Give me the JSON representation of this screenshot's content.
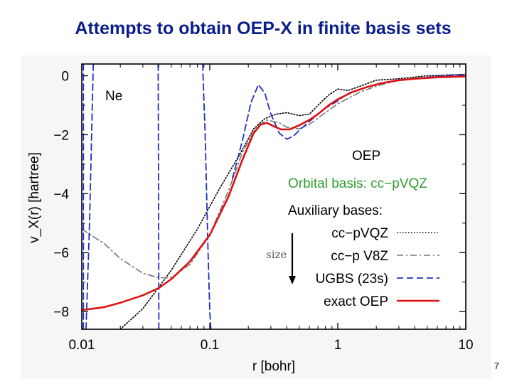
{
  "slide": {
    "title": "Attempts to obtain OEP-X in finite basis sets",
    "page_number": "7"
  },
  "chart_data": {
    "type": "line",
    "xlabel": "r  [bohr]",
    "ylabel": "v_X(r)  [hartree]",
    "xscale": "log",
    "xlim": [
      0.01,
      10
    ],
    "ylim": [
      -8.6,
      0.4
    ],
    "xticks": [
      0.01,
      0.1,
      1,
      10
    ],
    "xtick_labels": [
      "0.01",
      "0.1",
      "1",
      "10"
    ],
    "yticks": [
      0,
      -2,
      -4,
      -6,
      -8
    ],
    "ytick_labels": [
      "0",
      "−2",
      "−4",
      "−6",
      "−8"
    ],
    "annotations": {
      "atom": "Ne",
      "method": "OEP",
      "orbital_basis": "Orbital basis: cc−pVQZ",
      "aux_header": "Auxiliary bases:",
      "size": "size"
    },
    "colors": {
      "orbital_basis": "#2e9e2e",
      "size_label": "#555555"
    },
    "legend_placement": "bottom-right",
    "series": [
      {
        "name": "cc−pVQZ",
        "color": "#000000",
        "style": "dotted",
        "x": [
          0.02,
          0.03,
          0.05,
          0.08,
          0.12,
          0.17,
          0.22,
          0.27,
          0.33,
          0.4,
          0.5,
          0.6,
          0.7,
          0.85,
          1.0,
          1.2,
          1.5,
          2.0,
          3.0,
          5.0,
          10.0
        ],
        "y": [
          -8.6,
          -7.9,
          -6.6,
          -5.2,
          -3.8,
          -2.7,
          -1.8,
          -1.45,
          -1.3,
          -1.25,
          -1.35,
          -1.3,
          -1.0,
          -0.65,
          -0.45,
          -0.5,
          -0.35,
          -0.15,
          -0.1,
          0.0,
          0.05
        ]
      },
      {
        "name": "cc−p V8Z",
        "color": "#777777",
        "style": "dash-dot",
        "x": [
          0.01,
          0.015,
          0.02,
          0.03,
          0.04,
          0.05,
          0.07,
          0.1,
          0.14,
          0.18,
          0.23,
          0.28,
          0.35,
          0.4,
          0.5,
          0.6,
          0.8,
          1.0,
          1.5,
          2.0,
          3.0,
          5.0,
          10.0
        ],
        "y": [
          -5.2,
          -5.7,
          -6.2,
          -6.7,
          -6.85,
          -6.85,
          -6.4,
          -5.4,
          -3.9,
          -2.6,
          -1.75,
          -1.5,
          -1.6,
          -1.75,
          -1.8,
          -1.65,
          -1.25,
          -0.95,
          -0.55,
          -0.35,
          -0.15,
          -0.05,
          0.05
        ]
      },
      {
        "name": "UGBS (23s)",
        "color": "#1f2fbf",
        "style": "dashed",
        "segments": [
          {
            "x": [
              0.0103,
              0.0103
            ],
            "y": [
              -8.6,
              0.4
            ]
          },
          {
            "x": [
              0.0108,
              0.0115,
              0.0123
            ],
            "y": [
              -8.6,
              -5.0,
              0.4
            ]
          },
          {
            "x": [
              0.0395,
              0.0398,
              0.04
            ],
            "y": [
              0.4,
              -4.0,
              -8.6
            ]
          },
          {
            "x": [
              0.088,
              0.092,
              0.097,
              0.1,
              0.102
            ],
            "y": [
              0.4,
              -2.0,
              -6.0,
              -8.0,
              -8.6
            ]
          },
          {
            "x": [
              0.15,
              0.18,
              0.21,
              0.24,
              0.27,
              0.3,
              0.35,
              0.4,
              0.45,
              0.5,
              0.6,
              0.7,
              0.8,
              1.0,
              1.2,
              1.5,
              2.0,
              3.0,
              5.0,
              10.0
            ],
            "y": [
              -3.5,
              -2.2,
              -0.9,
              -0.3,
              -0.6,
              -1.3,
              -1.95,
              -2.15,
              -2.05,
              -1.85,
              -1.55,
              -1.3,
              -1.1,
              -0.85,
              -0.6,
              -0.45,
              -0.3,
              -0.15,
              -0.05,
              0.05
            ]
          }
        ]
      },
      {
        "name": "exact OEP",
        "color": "#dd1111",
        "style": "solid",
        "x": [
          0.01,
          0.015,
          0.02,
          0.03,
          0.04,
          0.05,
          0.07,
          0.1,
          0.14,
          0.18,
          0.22,
          0.25,
          0.28,
          0.32,
          0.36,
          0.42,
          0.5,
          0.6,
          0.7,
          0.85,
          1.0,
          1.3,
          1.7,
          2.2,
          3.0,
          4.0,
          6.0,
          10.0
        ],
        "y": [
          -7.95,
          -7.85,
          -7.7,
          -7.45,
          -7.2,
          -6.9,
          -6.3,
          -5.4,
          -4.1,
          -2.85,
          -1.95,
          -1.65,
          -1.6,
          -1.72,
          -1.82,
          -1.82,
          -1.68,
          -1.5,
          -1.3,
          -1.0,
          -0.8,
          -0.55,
          -0.38,
          -0.25,
          -0.15,
          -0.1,
          -0.05,
          -0.02
        ]
      }
    ]
  }
}
